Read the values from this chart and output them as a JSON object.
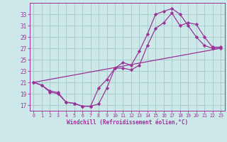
{
  "xlabel": "Windchill (Refroidissement éolien,°C)",
  "bg_color": "#cce8e8",
  "grid_color": "#aacccc",
  "line_color": "#993399",
  "xlim": [
    -0.5,
    23.5
  ],
  "ylim": [
    16.0,
    35.0
  ],
  "yticks": [
    17,
    19,
    21,
    23,
    25,
    27,
    29,
    31,
    33
  ],
  "xticks": [
    0,
    1,
    2,
    3,
    4,
    5,
    6,
    7,
    8,
    9,
    10,
    11,
    12,
    13,
    14,
    15,
    16,
    17,
    18,
    19,
    20,
    21,
    22,
    23
  ],
  "series1_x": [
    0,
    1,
    2,
    3,
    4,
    5,
    6,
    7,
    8,
    9,
    10,
    11,
    12,
    13,
    14,
    15,
    16,
    17,
    18,
    19,
    20,
    21,
    22,
    23
  ],
  "series1_y": [
    21.0,
    20.5,
    19.5,
    19.2,
    17.5,
    17.3,
    16.8,
    16.8,
    17.2,
    20.0,
    23.5,
    24.5,
    24.0,
    26.5,
    29.5,
    33.0,
    33.5,
    34.0,
    33.0,
    31.0,
    29.0,
    27.5,
    27.0,
    27.0
  ],
  "series2_x": [
    0,
    1,
    2,
    3,
    4,
    5,
    6,
    7,
    8,
    9,
    10,
    11,
    12,
    13,
    14,
    15,
    16,
    17,
    18,
    19,
    20,
    21,
    22,
    23
  ],
  "series2_y": [
    21.0,
    20.5,
    19.3,
    19.0,
    17.5,
    17.3,
    16.8,
    16.8,
    20.0,
    21.5,
    23.5,
    23.5,
    23.2,
    24.0,
    27.5,
    30.5,
    31.5,
    33.2,
    31.0,
    31.5,
    31.2,
    29.0,
    27.2,
    27.2
  ],
  "series3_x": [
    0,
    23
  ],
  "series3_y": [
    21.0,
    27.0
  ]
}
